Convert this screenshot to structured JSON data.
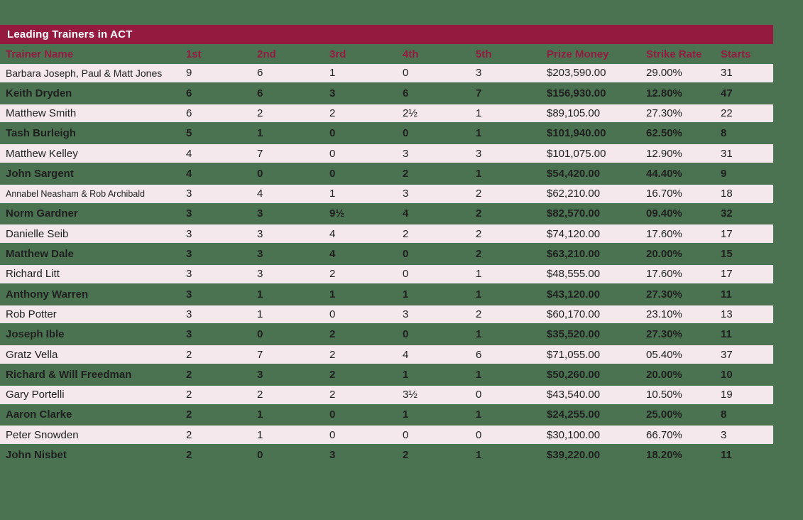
{
  "accent_colors": {
    "maroon": "#951A40",
    "background_green": "#4B7351",
    "row_pink": "#F4E8EC",
    "title_text": "#FFFFFF",
    "body_text": "#1F1F1F"
  },
  "table": {
    "title": "Leading Trainers in ACT",
    "columns": [
      "Trainer Name",
      "1st",
      "2nd",
      "3rd",
      "4th",
      "5th",
      "Prize Money",
      "Strike Rate",
      "Starts"
    ],
    "rows": [
      [
        "Barbara Joseph, Paul & Matt Jones",
        "9",
        "6",
        "1",
        "0",
        "3",
        "$203,590.00",
        "29.00%",
        "31"
      ],
      [
        "Keith Dryden",
        "6",
        "6",
        "3",
        "6",
        "7",
        "$156,930.00",
        "12.80%",
        "47"
      ],
      [
        "Matthew Smith",
        "6",
        "2",
        "2",
        "2½",
        "1",
        "$89,105.00",
        "27.30%",
        "22"
      ],
      [
        "Tash Burleigh",
        "5",
        "1",
        "0",
        "0",
        "1",
        "$101,940.00",
        "62.50%",
        "8"
      ],
      [
        "Matthew Kelley",
        "4",
        "7",
        "0",
        "3",
        "3",
        "$101,075.00",
        "12.90%",
        "31"
      ],
      [
        "John Sargent",
        "4",
        "0",
        "0",
        "2",
        "1",
        "$54,420.00",
        "44.40%",
        "9"
      ],
      [
        "Annabel Neasham & Rob Archibald",
        "3",
        "4",
        "1",
        "3",
        "2",
        "$62,210.00",
        "16.70%",
        "18"
      ],
      [
        "Norm Gardner",
        "3",
        "3",
        "9½",
        "4",
        "2",
        "$82,570.00",
        "09.40%",
        "32"
      ],
      [
        "Danielle Seib",
        "3",
        "3",
        "4",
        "2",
        "2",
        "$74,120.00",
        "17.60%",
        "17"
      ],
      [
        "Matthew Dale",
        "3",
        "3",
        "4",
        "0",
        "2",
        "$63,210.00",
        "20.00%",
        "15"
      ],
      [
        "Richard Litt",
        "3",
        "3",
        "2",
        "0",
        "1",
        "$48,555.00",
        "17.60%",
        "17"
      ],
      [
        "Anthony Warren",
        "3",
        "1",
        "1",
        "1",
        "1",
        "$43,120.00",
        "27.30%",
        "11"
      ],
      [
        "Rob Potter",
        "3",
        "1",
        "0",
        "3",
        "2",
        "$60,170.00",
        "23.10%",
        "13"
      ],
      [
        "Joseph Ible",
        "3",
        "0",
        "2",
        "0",
        "1",
        "$35,520.00",
        "27.30%",
        "11"
      ],
      [
        "Gratz Vella",
        "2",
        "7",
        "2",
        "4",
        "6",
        "$71,055.00",
        "05.40%",
        "37"
      ],
      [
        "Richard & Will Freedman",
        "2",
        "3",
        "2",
        "1",
        "1",
        "$50,260.00",
        "20.00%",
        "10"
      ],
      [
        "Gary Portelli",
        "2",
        "2",
        "2",
        "3½",
        "0",
        "$43,540.00",
        "10.50%",
        "19"
      ],
      [
        "Aaron Clarke",
        "2",
        "1",
        "0",
        "1",
        "1",
        "$24,255.00",
        "25.00%",
        "8"
      ],
      [
        "Peter Snowden",
        "2",
        "1",
        "0",
        "0",
        "0",
        "$30,100.00",
        "66.70%",
        "3"
      ],
      [
        "John Nisbet",
        "2",
        "0",
        "3",
        "2",
        "1",
        "$39,220.00",
        "18.20%",
        "11"
      ]
    ]
  }
}
